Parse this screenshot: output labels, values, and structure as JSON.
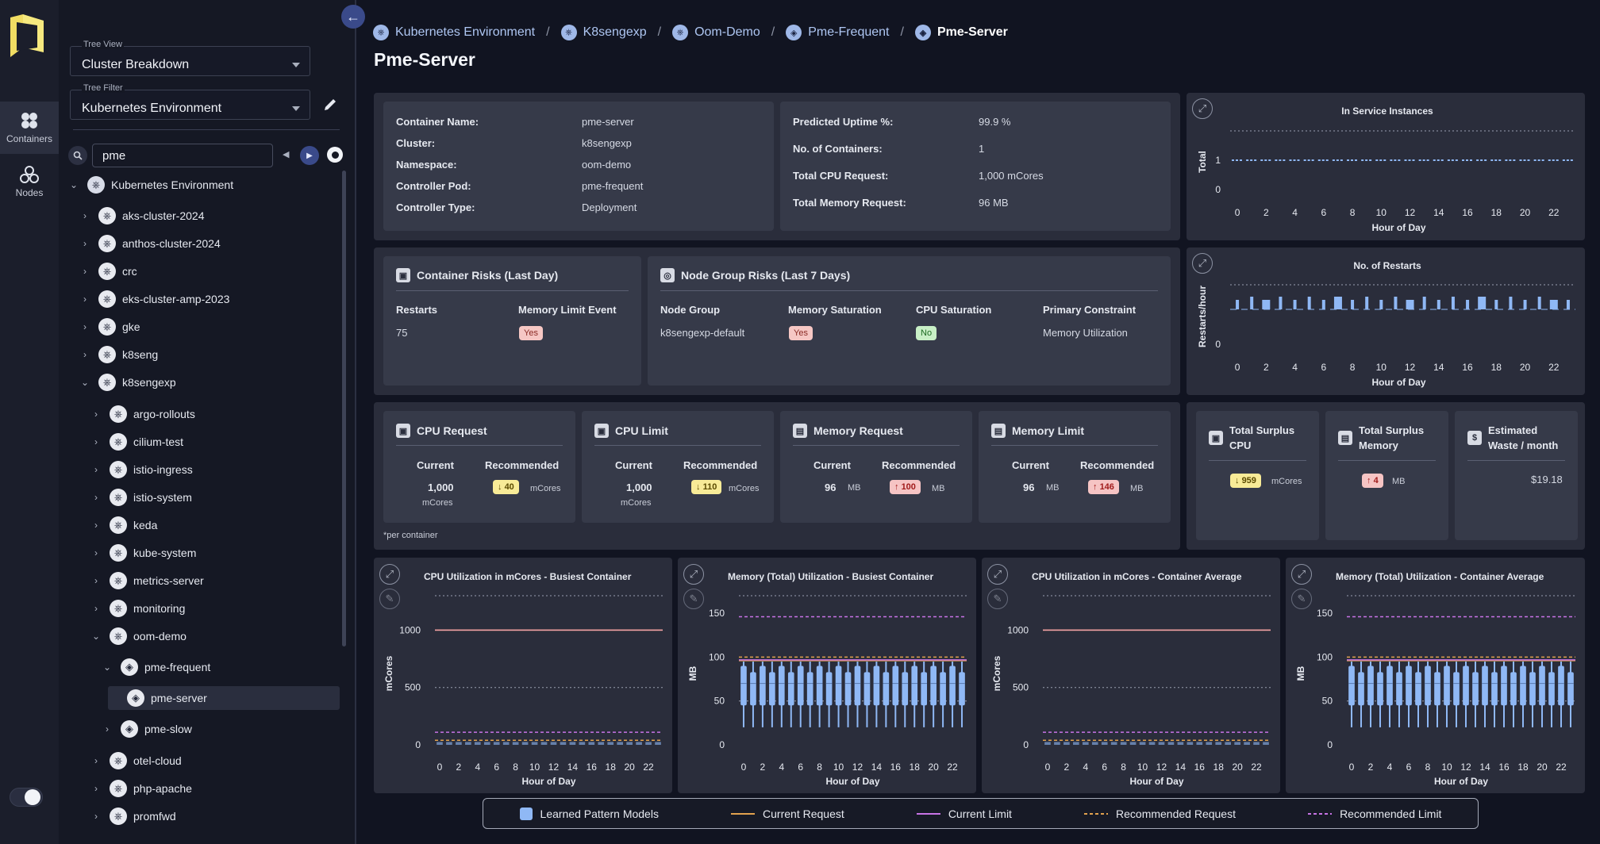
{
  "rail": {
    "containers": "Containers",
    "nodes": "Nodes"
  },
  "sidebar": {
    "tree_view": {
      "label": "Tree View",
      "value": "Cluster Breakdown"
    },
    "tree_filter": {
      "label": "Tree Filter",
      "value": "Kubernetes Environment"
    },
    "search": {
      "value": "pme"
    },
    "tree": [
      {
        "label": "Kubernetes Environment",
        "level": 0,
        "chev": "v",
        "icon": "env"
      },
      {
        "label": "aks-cluster-2024",
        "level": 1,
        "chev": ">"
      },
      {
        "label": "anthos-cluster-2024",
        "level": 1,
        "chev": ">"
      },
      {
        "label": "crc",
        "level": 1,
        "chev": ">"
      },
      {
        "label": "eks-cluster-amp-2023",
        "level": 1,
        "chev": ">"
      },
      {
        "label": "gke",
        "level": 1,
        "chev": ">"
      },
      {
        "label": "k8seng",
        "level": 1,
        "chev": ">"
      },
      {
        "label": "k8sengexp",
        "level": 1,
        "chev": "v"
      },
      {
        "label": "argo-rollouts",
        "level": 2,
        "chev": ">"
      },
      {
        "label": "cilium-test",
        "level": 2,
        "chev": ">"
      },
      {
        "label": "istio-ingress",
        "level": 2,
        "chev": ">"
      },
      {
        "label": "istio-system",
        "level": 2,
        "chev": ">"
      },
      {
        "label": "keda",
        "level": 2,
        "chev": ">"
      },
      {
        "label": "kube-system",
        "level": 2,
        "chev": ">"
      },
      {
        "label": "metrics-server",
        "level": 2,
        "chev": ">"
      },
      {
        "label": "monitoring",
        "level": 2,
        "chev": ">"
      },
      {
        "label": "oom-demo",
        "level": 2,
        "chev": "v"
      },
      {
        "label": "pme-frequent",
        "level": 3,
        "chev": "v"
      },
      {
        "label": "pme-server",
        "level": 4,
        "chev": "",
        "selected": true
      },
      {
        "label": "pme-slow",
        "level": 3,
        "chev": ">"
      },
      {
        "label": "otel-cloud",
        "level": 2,
        "chev": ">"
      },
      {
        "label": "php-apache",
        "level": 2,
        "chev": ">"
      },
      {
        "label": "promfwd",
        "level": 2,
        "chev": ">"
      }
    ]
  },
  "breadcrumb": [
    "Kubernetes Environment",
    "K8sengexp",
    "Oom-Demo",
    "Pme-Frequent",
    "Pme-Server"
  ],
  "page_title": "Pme-Server",
  "info_left": [
    [
      "Container Name:",
      "pme-server"
    ],
    [
      "Cluster:",
      "k8sengexp"
    ],
    [
      "Namespace:",
      "oom-demo"
    ],
    [
      "Controller Pod:",
      "pme-frequent"
    ],
    [
      "Controller Type:",
      "Deployment"
    ]
  ],
  "info_right": [
    [
      "Predicted Uptime %:",
      "99.9 %"
    ],
    [
      "No. of Containers:",
      "1"
    ],
    [
      "Total CPU Request:",
      "1,000 mCores"
    ],
    [
      "Total Memory Request:",
      "96 MB"
    ]
  ],
  "container_risks": {
    "title": "Container Risks (Last Day)",
    "restarts_label": "Restarts",
    "restarts": "75",
    "mem_limit_label": "Memory Limit Event",
    "mem_limit": "Yes"
  },
  "node_risks": {
    "title": "Node Group Risks (Last 7 Days)",
    "headers": [
      "Node Group",
      "Memory Saturation",
      "CPU Saturation",
      "Primary Constraint"
    ],
    "values": [
      "k8sengexp-default",
      "Yes",
      "No",
      "Memory Utilization"
    ]
  },
  "resources": [
    {
      "title": "CPU Request",
      "cur_label": "Current",
      "rec_label": "Recommended",
      "current": "1,000",
      "current_unit": "mCores",
      "rec": "40",
      "rec_unit": "mCores",
      "dir": "↓"
    },
    {
      "title": "CPU Limit",
      "cur_label": "Current",
      "rec_label": "Recommended",
      "current": "1,000",
      "current_unit": "mCores",
      "rec": "110",
      "rec_unit": "mCores",
      "dir": "↓"
    },
    {
      "title": "Memory Request",
      "cur_label": "Current",
      "rec_label": "Recommended",
      "current": "96",
      "current_unit": "MB",
      "rec": "100",
      "rec_unit": "MB",
      "dir": "↑"
    },
    {
      "title": "Memory Limit",
      "cur_label": "Current",
      "rec_label": "Recommended",
      "current": "96",
      "current_unit": "MB",
      "rec": "146",
      "rec_unit": "MB",
      "dir": "↑"
    }
  ],
  "per_container": "*per container",
  "surplus": [
    {
      "title1": "Total Surplus",
      "title2": "CPU",
      "value": "959",
      "unit": "mCores",
      "dir": "↓"
    },
    {
      "title1": "Total Surplus",
      "title2": "Memory",
      "value": "4",
      "unit": "MB",
      "dir": "↑"
    },
    {
      "title1": "Estimated",
      "title2": "Waste / month",
      "value": "$19.18"
    }
  ],
  "chart_data": [
    {
      "type": "line",
      "title": "In Service Instances",
      "ylabel": "Total",
      "xlabel": "Hour of Day",
      "x": [
        0,
        1,
        2,
        3,
        4,
        5,
        6,
        7,
        8,
        9,
        10,
        11,
        12,
        13,
        14,
        15,
        16,
        17,
        18,
        19,
        20,
        21,
        22,
        23
      ],
      "ylim": [
        0,
        2
      ],
      "yticks": [
        0,
        1
      ],
      "xticks": [
        0,
        2,
        4,
        6,
        8,
        10,
        12,
        14,
        16,
        18,
        20,
        22
      ],
      "series": [
        {
          "name": "Instances",
          "values": [
            1,
            1,
            1,
            1,
            1,
            1,
            1,
            1,
            1,
            1,
            1,
            1,
            1,
            1,
            1,
            1,
            1,
            1,
            1,
            1,
            1,
            1,
            1,
            1
          ]
        }
      ]
    },
    {
      "type": "bar",
      "title": "No. of Restarts",
      "ylabel": "Restarts/hour",
      "xlabel": "Hour of Day",
      "x": [
        0,
        1,
        2,
        3,
        4,
        5,
        6,
        7,
        8,
        9,
        10,
        11,
        12,
        13,
        14,
        15,
        16,
        17,
        18,
        19,
        20,
        21,
        22,
        23
      ],
      "ylim": [
        0,
        7
      ],
      "yticks": [
        0
      ],
      "xticks": [
        0,
        2,
        4,
        6,
        8,
        10,
        12,
        14,
        16,
        18,
        20,
        22
      ],
      "values": [
        3,
        4,
        3,
        4,
        3,
        4,
        3,
        4,
        3,
        4,
        3,
        4,
        3,
        4,
        3,
        4,
        3,
        4,
        3,
        4,
        3,
        4,
        3,
        3
      ]
    },
    {
      "type": "box",
      "title": "CPU Utilization in mCores - Busiest Container",
      "ylabel": "mCores",
      "xlabel": "Hour of Day",
      "ylim": [
        0,
        1300
      ],
      "yticks": [
        0,
        500,
        1000
      ],
      "xticks": [
        0,
        2,
        4,
        6,
        8,
        10,
        12,
        14,
        16,
        18,
        20,
        22
      ],
      "current_request": 1000,
      "current_limit": 1000,
      "recommended_request": 40,
      "recommended_limit": 110,
      "box_low": 0,
      "box_high": 25
    },
    {
      "type": "box",
      "title": "Memory (Total) Utilization - Busiest Container",
      "ylabel": "MB",
      "xlabel": "Hour of Day",
      "ylim": [
        0,
        170
      ],
      "yticks": [
        0,
        50,
        100,
        150
      ],
      "xticks": [
        0,
        2,
        4,
        6,
        8,
        10,
        12,
        14,
        16,
        18,
        20,
        22
      ],
      "current_request": 96,
      "current_limit": 96,
      "recommended_request": 100,
      "recommended_limit": 146,
      "box_low": 35,
      "box_high": 90
    },
    {
      "type": "box",
      "title": "CPU Utilization in mCores - Container Average",
      "ylabel": "mCores",
      "xlabel": "Hour of Day",
      "ylim": [
        0,
        1300
      ],
      "yticks": [
        0,
        500,
        1000
      ],
      "xticks": [
        0,
        2,
        4,
        6,
        8,
        10,
        12,
        14,
        16,
        18,
        20,
        22
      ],
      "current_request": 1000,
      "current_limit": 1000,
      "recommended_request": 40,
      "recommended_limit": 110,
      "box_low": 0,
      "box_high": 25
    },
    {
      "type": "box",
      "title": "Memory (Total) Utilization - Container Average",
      "ylabel": "MB",
      "xlabel": "Hour of Day",
      "ylim": [
        0,
        170
      ],
      "yticks": [
        0,
        50,
        100,
        150
      ],
      "xticks": [
        0,
        2,
        4,
        6,
        8,
        10,
        12,
        14,
        16,
        18,
        20,
        22
      ],
      "current_request": 96,
      "current_limit": 96,
      "recommended_request": 100,
      "recommended_limit": 146,
      "box_low": 35,
      "box_high": 90
    }
  ],
  "legend": [
    "Learned Pattern Models",
    "Current Request",
    "Current Limit",
    "Recommended Request",
    "Recommended Limit"
  ],
  "colors": {
    "current_request": "#e2a24e",
    "current_limit": "#c873e6",
    "recommended_request": "#e2a24e",
    "recommended_limit": "#c873e6",
    "box": "#8fb8f5",
    "accent": "#3a4a8a"
  }
}
